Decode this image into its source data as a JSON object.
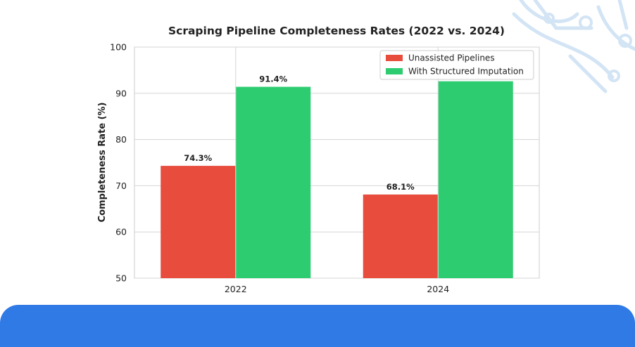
{
  "chart_data": {
    "type": "bar",
    "title": "Scraping Pipeline Completeness Rates (2022 vs. 2024)",
    "xlabel": "",
    "ylabel": "Completeness Rate (%)",
    "categories": [
      "2022",
      "2024"
    ],
    "ylim": [
      50,
      100
    ],
    "yticks": [
      50,
      60,
      70,
      80,
      90,
      100
    ],
    "grid": true,
    "legend_position": "top-right",
    "series": [
      {
        "name": "Unassisted Pipelines",
        "color": "#e74c3c",
        "values": [
          74.3,
          68.1
        ],
        "labels": [
          "74.3%",
          "68.1%"
        ]
      },
      {
        "name": "With Structured Imputation",
        "color": "#2ecc71",
        "values": [
          91.4,
          92.6
        ],
        "labels": [
          "91.4%",
          ""
        ]
      }
    ]
  },
  "decor": {
    "banner_color": "#2f7ae5",
    "circuit_color": "#c6dcf2",
    "circuit_icon": "circuit-lines-icon"
  }
}
